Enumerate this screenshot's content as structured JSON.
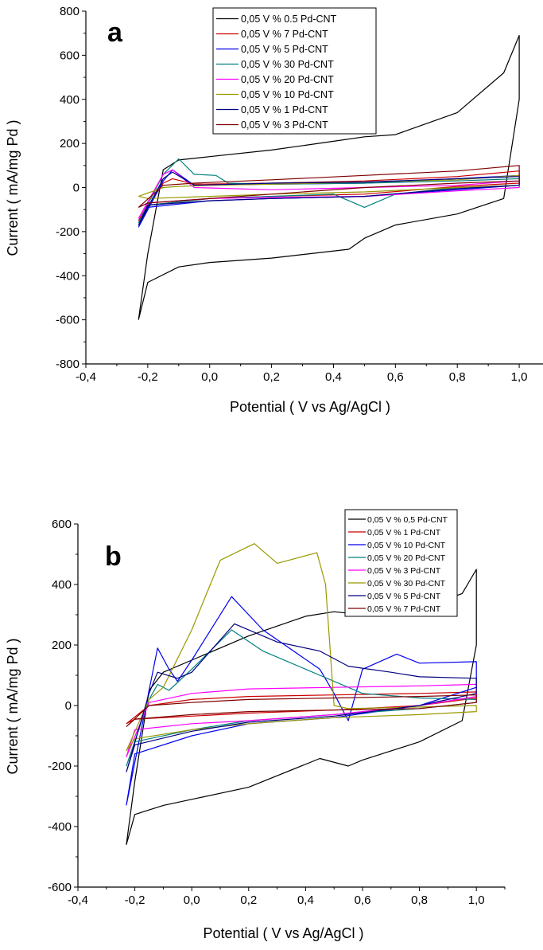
{
  "chart_data": [
    {
      "panel": "a",
      "type": "line",
      "title": "",
      "xlabel": "Potential ( V vs Ag/AgCl )",
      "ylabel": "Current ( mA/mg Pd )",
      "xlim": [
        -0.4,
        1.1
      ],
      "ylim": [
        -800,
        800
      ],
      "xticks": [
        "-0,4",
        "-0,2",
        "0,0",
        "0,2",
        "0,4",
        "0,6",
        "0,8",
        "1,0"
      ],
      "yticks": [
        "800",
        "600",
        "400",
        "200",
        "0",
        "-200",
        "-400",
        "-600",
        "-800"
      ],
      "legend_position": "top-right",
      "series": [
        {
          "name": "0,05 V  % 0.5 Pd-CNT",
          "color": "#000000",
          "x": [
            -0.23,
            -0.2,
            -0.15,
            -0.1,
            0,
            0.2,
            0.4,
            0.5,
            0.6,
            0.8,
            0.95,
            1.0,
            1.0,
            0.95,
            0.8,
            0.6,
            0.5,
            0.45,
            0.2,
            0,
            -0.1,
            -0.2,
            -0.23,
            -0.23
          ],
          "y": [
            -600,
            -300,
            80,
            125,
            140,
            170,
            210,
            230,
            240,
            340,
            520,
            690,
            400,
            -50,
            -120,
            -170,
            -230,
            -280,
            -320,
            -340,
            -360,
            -430,
            -600,
            -600
          ]
        },
        {
          "name": "0,05 V  % 7 Pd-CNT",
          "color": "#cc0000",
          "x": [
            -0.23,
            -0.15,
            -0.12,
            -0.05,
            0.2,
            0.5,
            0.8,
            1.0,
            1.0,
            0.8,
            0.5,
            0.2,
            0,
            -0.2,
            -0.23
          ],
          "y": [
            -150,
            20,
            40,
            15,
            20,
            30,
            50,
            75,
            20,
            5,
            -30,
            -40,
            -50,
            -80,
            -150
          ]
        },
        {
          "name": "0,05 V  % 5 Pd-CNT",
          "color": "#0000ee",
          "x": [
            -0.23,
            -0.15,
            -0.12,
            -0.05,
            0.2,
            0.5,
            0.8,
            1.0,
            1.0,
            0.8,
            0.5,
            0.2,
            0,
            -0.2,
            -0.23
          ],
          "y": [
            -180,
            30,
            80,
            10,
            15,
            20,
            40,
            55,
            10,
            -10,
            -40,
            -50,
            -60,
            -90,
            -180
          ]
        },
        {
          "name": "0,05 V  % 30 Pd-CNT",
          "color": "#008080",
          "x": [
            -0.23,
            -0.15,
            -0.1,
            -0.05,
            0.02,
            0.06,
            0.2,
            0.5,
            0.8,
            1.0,
            1.0,
            0.8,
            0.6,
            0.5,
            0.4,
            0.2,
            0,
            -0.2,
            -0.23
          ],
          "y": [
            -160,
            60,
            130,
            60,
            55,
            20,
            15,
            20,
            30,
            40,
            10,
            0,
            -30,
            -90,
            -30,
            -40,
            -50,
            -80,
            -160
          ]
        },
        {
          "name": "0,05 V  % 20 Pd-CNT",
          "color": "#ff00ff",
          "x": [
            -0.23,
            -0.15,
            -0.12,
            -0.05,
            0.2,
            0.5,
            0.8,
            1.0,
            1.0,
            0.8,
            0.5,
            0.2,
            0,
            -0.2,
            -0.23
          ],
          "y": [
            -140,
            60,
            80,
            0,
            -10,
            0,
            10,
            30,
            0,
            -15,
            -40,
            -45,
            -50,
            -70,
            -140
          ]
        },
        {
          "name": "0,05 V  % 10 Pd-CNT",
          "color": "#999900",
          "x": [
            -0.23,
            -0.15,
            -0.1,
            0,
            0.2,
            0.5,
            0.8,
            1.0,
            1.0,
            0.8,
            0.5,
            0.2,
            0,
            -0.2,
            -0.23
          ],
          "y": [
            -40,
            0,
            5,
            10,
            15,
            25,
            35,
            55,
            10,
            0,
            -20,
            -30,
            -40,
            -50,
            -40
          ]
        },
        {
          "name": "0,05 V  % 1 Pd-CNT",
          "color": "#000080",
          "x": [
            -0.23,
            -0.15,
            -0.12,
            -0.05,
            0.2,
            0.5,
            0.8,
            1.0,
            1.0,
            0.8,
            0.5,
            0.2,
            0,
            -0.2,
            -0.23
          ],
          "y": [
            -170,
            40,
            70,
            10,
            20,
            25,
            40,
            50,
            10,
            -5,
            -40,
            -50,
            -60,
            -80,
            -170
          ]
        },
        {
          "name": "0,05 V  % 3 Pd-CNT",
          "color": "#800000",
          "x": [
            -0.23,
            -0.15,
            -0.05,
            0.2,
            0.5,
            0.8,
            1.0,
            1.0,
            0.8,
            0.5,
            0.2,
            0,
            -0.2,
            -0.23
          ],
          "y": [
            -90,
            10,
            20,
            35,
            55,
            75,
            100,
            30,
            20,
            0,
            -30,
            -50,
            -70,
            -90
          ]
        }
      ]
    },
    {
      "panel": "b",
      "type": "line",
      "title": "",
      "xlabel": "Potential ( V vs Ag/AgCl )",
      "ylabel": "Current ( mA/mg Pd )",
      "xlim": [
        -0.4,
        1.1
      ],
      "ylim": [
        -600,
        600
      ],
      "xticks": [
        "-0,4",
        "-0,2",
        "0,0",
        "0,2",
        "0,4",
        "0,6",
        "0,8",
        "1,0"
      ],
      "yticks": [
        "600",
        "400",
        "200",
        "0",
        "-200",
        "-400",
        "-600"
      ],
      "legend_position": "top-right",
      "series": [
        {
          "name": "0,05 V  % 0,5 Pd-CNT",
          "color": "#000000",
          "x": [
            -0.23,
            -0.2,
            -0.15,
            -0.1,
            0,
            0.2,
            0.4,
            0.5,
            0.65,
            0.8,
            0.95,
            1.0,
            1.0,
            0.95,
            0.8,
            0.6,
            0.55,
            0.45,
            0.2,
            0,
            -0.1,
            -0.2,
            -0.23,
            -0.23
          ],
          "y": [
            -460,
            -250,
            50,
            110,
            150,
            230,
            295,
            310,
            295,
            320,
            370,
            450,
            200,
            -50,
            -120,
            -180,
            -200,
            -175,
            -270,
            -310,
            -330,
            -360,
            -460,
            -460
          ]
        },
        {
          "name": "0,05 V  % 1 Pd-CNT",
          "color": "#cc0000",
          "x": [
            -0.23,
            -0.15,
            0,
            0.2,
            0.5,
            0.8,
            1.0,
            1.0,
            0.8,
            0.5,
            0.2,
            0,
            -0.2,
            -0.23
          ],
          "y": [
            -60,
            0,
            20,
            30,
            35,
            40,
            45,
            25,
            0,
            -15,
            -25,
            -35,
            -45,
            -60
          ]
        },
        {
          "name": "0,05 V  % 10 Pd-CNT",
          "color": "#0000ee",
          "x": [
            -0.23,
            -0.15,
            -0.12,
            -0.08,
            -0.05,
            0,
            0.14,
            0.25,
            0.45,
            0.5,
            0.55,
            0.6,
            0.72,
            0.8,
            1.0,
            1.0,
            0.8,
            0.5,
            0.2,
            0,
            -0.2,
            -0.23
          ],
          "y": [
            -330,
            50,
            190,
            120,
            80,
            150,
            360,
            250,
            120,
            40,
            -50,
            120,
            170,
            140,
            145,
            60,
            0,
            -40,
            -60,
            -100,
            -160,
            -330
          ]
        },
        {
          "name": "0,05 V  % 20 Pd-CNT",
          "color": "#008080",
          "x": [
            -0.23,
            -0.15,
            -0.12,
            -0.08,
            0,
            0.14,
            0.25,
            0.45,
            0.5,
            0.6,
            0.8,
            1.0,
            1.0,
            0.8,
            0.5,
            0.2,
            0,
            -0.2,
            -0.23
          ],
          "y": [
            -200,
            20,
            70,
            50,
            120,
            250,
            180,
            100,
            80,
            40,
            25,
            20,
            10,
            -10,
            -30,
            -50,
            -80,
            -120,
            -200
          ]
        },
        {
          "name": "0,05 V  % 3 Pd-CNT",
          "color": "#ff00ff",
          "x": [
            -0.23,
            -0.15,
            0,
            0.2,
            0.5,
            0.8,
            1.0,
            1.0,
            0.8,
            0.5,
            0.2,
            0,
            -0.2,
            -0.23
          ],
          "y": [
            -170,
            10,
            40,
            55,
            60,
            65,
            70,
            30,
            0,
            -30,
            -50,
            -60,
            -80,
            -170
          ]
        },
        {
          "name": "0,05 V  % 30 Pd-CNT",
          "color": "#999900",
          "x": [
            -0.23,
            -0.15,
            -0.1,
            0,
            0.1,
            0.22,
            0.3,
            0.44,
            0.47,
            0.5,
            0.55,
            0.8,
            1.0,
            1.0,
            0.8,
            0.5,
            0.2,
            0,
            -0.2,
            -0.23
          ],
          "y": [
            -150,
            20,
            60,
            250,
            480,
            535,
            470,
            505,
            400,
            0,
            -10,
            -5,
            0,
            -20,
            -30,
            -40,
            -60,
            -80,
            -110,
            -150
          ]
        },
        {
          "name": "0,05 V  % 5 Pd-CNT",
          "color": "#000080",
          "x": [
            -0.23,
            -0.15,
            -0.12,
            -0.05,
            0,
            0.15,
            0.3,
            0.45,
            0.55,
            0.7,
            0.8,
            1.0,
            1.0,
            0.8,
            0.5,
            0.2,
            0,
            -0.2,
            -0.23
          ],
          "y": [
            -220,
            40,
            110,
            90,
            110,
            270,
            210,
            180,
            130,
            110,
            95,
            90,
            40,
            0,
            -35,
            -55,
            -85,
            -130,
            -220
          ]
        },
        {
          "name": "0,05 V  % 7 Pd-CNT",
          "color": "#800000",
          "x": [
            -0.23,
            -0.15,
            0,
            0.2,
            0.5,
            0.8,
            1.0,
            1.0,
            0.8,
            0.5,
            0.2,
            0,
            -0.2,
            -0.23
          ],
          "y": [
            -70,
            0,
            10,
            20,
            25,
            30,
            35,
            10,
            -10,
            -15,
            -20,
            -30,
            -45,
            -70
          ]
        }
      ]
    }
  ]
}
